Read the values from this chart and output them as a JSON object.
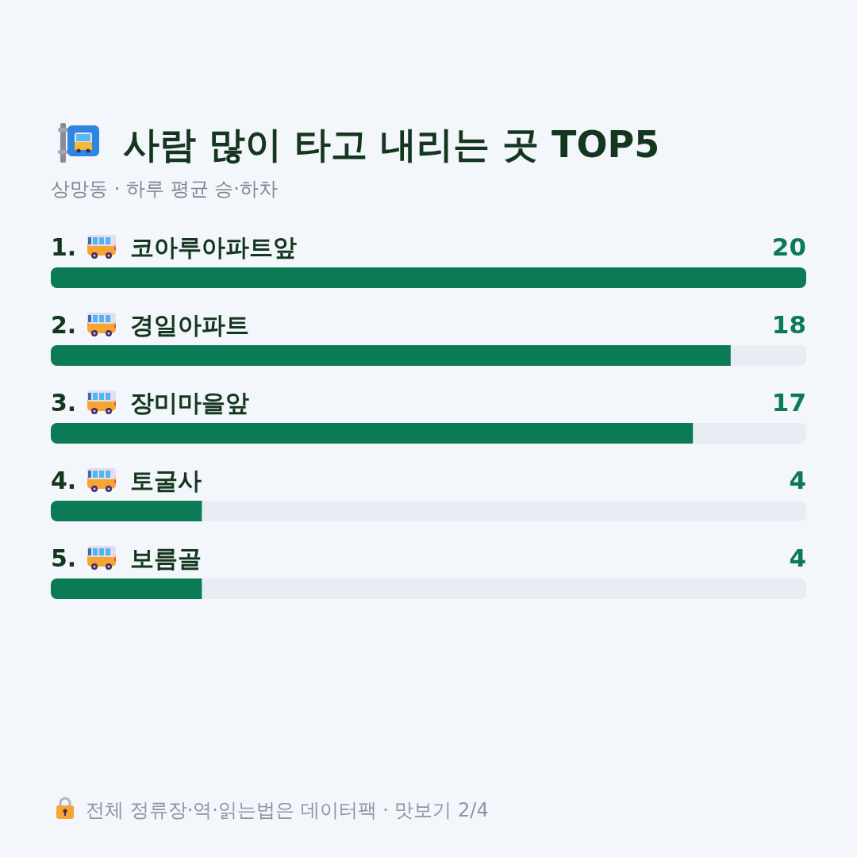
{
  "chart_data": {
    "type": "bar",
    "orientation": "horizontal",
    "title": "사람 많이 타고 내리는 곳 TOP5",
    "subtitle": "상망동 · 하루 평균 승·하차",
    "categories": [
      "1. 코아루아파트앞",
      "2. 경일아파트",
      "3. 장미마을앞",
      "4. 토굴사",
      "5. 보름골"
    ],
    "values": [
      20,
      18,
      17,
      4,
      4
    ],
    "color": "#0b7b55",
    "data_labels": true,
    "annotations": [
      "전체 정류장·역·읽는법은 데이터팩 · 맛보기 2/4"
    ]
  }
}
